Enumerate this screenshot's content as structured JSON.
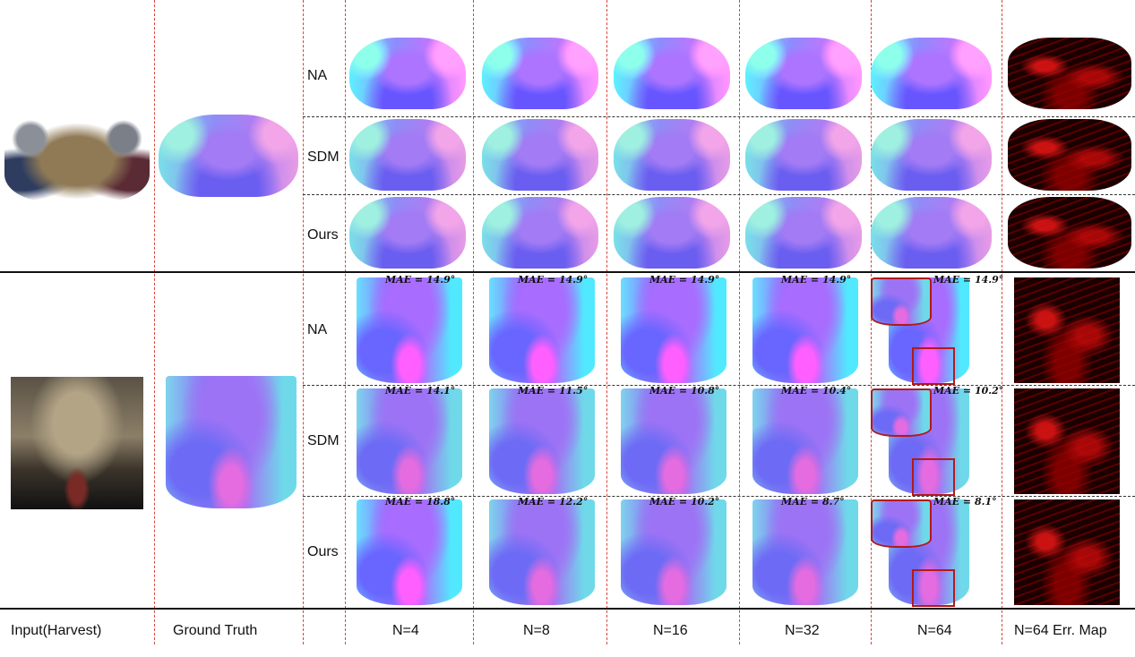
{
  "column_labels": [
    "Input(Harvest)",
    "Ground Truth",
    "N=4",
    "N=8",
    "N=16",
    "N=32",
    "N=64",
    "N=64 Err. Map"
  ],
  "methods": [
    "NA",
    "SDM",
    "Ours"
  ],
  "colors": {
    "divider": "#d9453e",
    "zoom_box": "#b3191b",
    "error": "#cc0000"
  },
  "mae_prefix": "MAE = ",
  "mae_unit": "°",
  "mae_table": {
    "columns": [
      "N=4",
      "N=8",
      "N=16",
      "N=32",
      "N=64"
    ],
    "NA": [
      "14.9",
      "14.9",
      "14.9",
      "14.9",
      "14.9"
    ],
    "SDM": [
      "14.1",
      "11.5",
      "10.8",
      "10.4",
      "10.2"
    ],
    "Ours": [
      "18.8",
      "12.2",
      "10.2",
      "8.7",
      "8.1"
    ]
  }
}
